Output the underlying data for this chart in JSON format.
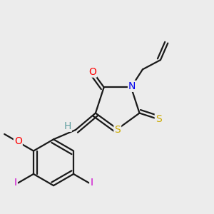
{
  "bg_color": "#ececec",
  "bond_color": "#1a1a1a",
  "bond_width": 1.6,
  "atom_colors": {
    "O": "#ff0000",
    "N": "#0000ee",
    "S": "#ccaa00",
    "I": "#cc00cc",
    "H": "#5f9ea0",
    "C": "#1a1a1a"
  },
  "figsize": [
    3.0,
    3.0
  ],
  "dpi": 100
}
